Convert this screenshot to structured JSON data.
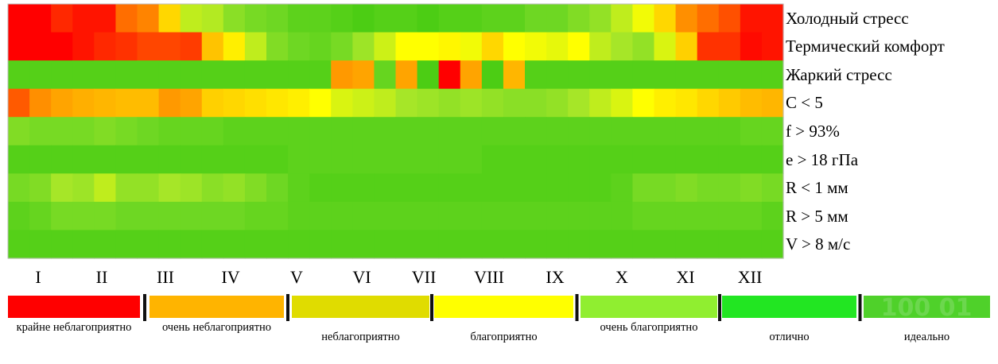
{
  "chart_data": {
    "type": "heatmap",
    "title": "",
    "rows": [
      "Холодный стресс",
      "Термический комфорт",
      "Жаркий стресс",
      "C < 5",
      "f > 93%",
      "e > 18 гПа",
      "R < 1 мм",
      "R > 5 мм",
      "V > 8 м/с"
    ],
    "months": [
      "I",
      "II",
      "III",
      "IV",
      "V",
      "VI",
      "VII",
      "VIII",
      "IX",
      "X",
      "XI",
      "XII"
    ],
    "columns_per_month": 3,
    "scale": {
      "min": 0,
      "max": 100,
      "categories": [
        {
          "label": "крайне неблагоприятно",
          "color": "#ff0000"
        },
        {
          "label": "очень неблагоприятно",
          "color": "#ffb400"
        },
        {
          "label": "неблагоприятно",
          "color": "#e0dc00"
        },
        {
          "label": "благоприятно",
          "color": "#ffff00"
        },
        {
          "label": "очень благоприятно",
          "color": "#90ee30"
        },
        {
          "label": "отлично",
          "color": "#22e622"
        },
        {
          "label": "идеально",
          "color": "#4fd12a"
        }
      ]
    },
    "values": [
      [
        0,
        0,
        8,
        4,
        4,
        22,
        26,
        46,
        66,
        68,
        76,
        80,
        82,
        86,
        86,
        88,
        90,
        88,
        88,
        90,
        88,
        88,
        86,
        86,
        82,
        82,
        78,
        74,
        66,
        58,
        46,
        28,
        22,
        16,
        4,
        4
      ],
      [
        0,
        0,
        0,
        4,
        8,
        10,
        14,
        14,
        12,
        40,
        52,
        66,
        78,
        82,
        84,
        80,
        72,
        64,
        56,
        56,
        54,
        58,
        46,
        56,
        58,
        60,
        56,
        66,
        70,
        74,
        62,
        44,
        10,
        10,
        2,
        4
      ],
      [
        88,
        88,
        88,
        88,
        88,
        88,
        88,
        88,
        88,
        88,
        88,
        88,
        88,
        88,
        88,
        30,
        32,
        84,
        32,
        90,
        0,
        32,
        90,
        36,
        88,
        88,
        88,
        88,
        88,
        88,
        88,
        88,
        88,
        88,
        88,
        88
      ],
      [
        18,
        28,
        32,
        34,
        36,
        38,
        38,
        30,
        32,
        44,
        46,
        48,
        50,
        52,
        56,
        62,
        64,
        66,
        70,
        72,
        74,
        72,
        74,
        76,
        76,
        74,
        70,
        66,
        62,
        56,
        52,
        50,
        46,
        42,
        38,
        36
      ],
      [
        78,
        80,
        80,
        80,
        78,
        80,
        82,
        84,
        84,
        84,
        86,
        86,
        86,
        86,
        86,
        86,
        86,
        86,
        86,
        86,
        86,
        86,
        86,
        86,
        86,
        86,
        86,
        86,
        86,
        86,
        86,
        86,
        86,
        86,
        84,
        84
      ],
      [
        88,
        88,
        88,
        88,
        88,
        88,
        88,
        88,
        88,
        88,
        88,
        88,
        88,
        86,
        86,
        86,
        86,
        86,
        86,
        86,
        86,
        86,
        88,
        88,
        88,
        88,
        88,
        88,
        88,
        88,
        88,
        88,
        88,
        88,
        88,
        88
      ],
      [
        80,
        78,
        70,
        72,
        66,
        74,
        74,
        70,
        72,
        76,
        74,
        78,
        82,
        86,
        88,
        88,
        88,
        88,
        88,
        88,
        88,
        88,
        88,
        88,
        88,
        88,
        88,
        88,
        86,
        80,
        80,
        78,
        80,
        80,
        78,
        80
      ],
      [
        86,
        84,
        80,
        80,
        80,
        82,
        82,
        82,
        82,
        82,
        82,
        84,
        84,
        86,
        86,
        86,
        86,
        86,
        86,
        86,
        86,
        86,
        86,
        86,
        86,
        86,
        86,
        86,
        86,
        84,
        84,
        84,
        84,
        84,
        84,
        86
      ],
      [
        88,
        88,
        88,
        88,
        88,
        88,
        88,
        88,
        88,
        88,
        88,
        88,
        88,
        88,
        88,
        88,
        88,
        88,
        88,
        88,
        88,
        88,
        88,
        88,
        88,
        88,
        88,
        88,
        88,
        88,
        88,
        88,
        88,
        88,
        88,
        88
      ]
    ],
    "legend_watermark": "100 01"
  }
}
